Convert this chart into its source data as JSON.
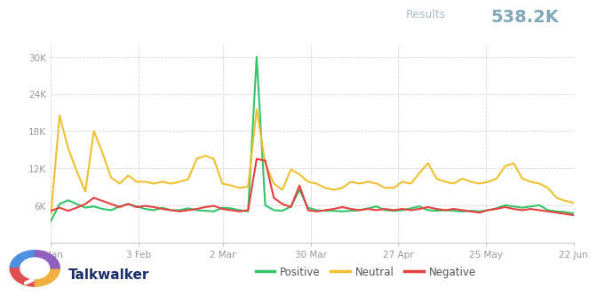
{
  "yticks": [
    0,
    6000,
    12000,
    18000,
    24000,
    30000
  ],
  "ytick_labels": [
    "",
    "6K",
    "12K",
    "18K",
    "24K",
    "30K"
  ],
  "xtick_labels": [
    "6 Jan",
    "3 Feb",
    "2 Mar",
    "30 Mar",
    "27 Apr",
    "25 May",
    "22 Jun"
  ],
  "days_from_start": [
    0,
    28,
    55,
    83,
    111,
    139,
    167
  ],
  "total_days": 167,
  "colors": {
    "positive": "#34c46a",
    "neutral": "#f0c030",
    "negative": "#e84040",
    "grid": "#cccccc",
    "spine": "#cccccc",
    "tick_label": "#999999"
  },
  "positive": [
    3500,
    6200,
    6800,
    6200,
    5600,
    5800,
    5400,
    5200,
    5800,
    6200,
    5800,
    5400,
    5200,
    5600,
    5200,
    5200,
    5500,
    5200,
    5100,
    5000,
    5600,
    5500,
    5200,
    5000,
    30000,
    6000,
    5200,
    5100,
    5800,
    8500,
    5600,
    5200,
    5100,
    5100,
    5000,
    5100,
    5200,
    5500,
    5800,
    5200,
    5100,
    5200,
    5500,
    5800,
    5200,
    5100,
    5200,
    5100,
    5000,
    5100,
    5000,
    5200,
    5500,
    6000,
    5800,
    5600,
    5800,
    6000,
    5200,
    5000,
    4900,
    4700
  ],
  "neutral": [
    4600,
    20500,
    15200,
    11500,
    8200,
    18000,
    14500,
    10500,
    9500,
    10800,
    9800,
    9800,
    9500,
    9800,
    9500,
    9800,
    10200,
    13500,
    14000,
    13500,
    9500,
    9200,
    8800,
    9000,
    21500,
    12800,
    9500,
    8500,
    11800,
    11000,
    9800,
    9500,
    8800,
    8500,
    8800,
    9800,
    9500,
    9800,
    9500,
    8800,
    8800,
    9800,
    9500,
    11200,
    12800,
    10300,
    9800,
    9500,
    10300,
    9800,
    9500,
    9800,
    10300,
    12300,
    12800,
    10300,
    9800,
    9500,
    8800,
    7200,
    6700,
    6400
  ],
  "negative": [
    5100,
    5600,
    5100,
    5600,
    6200,
    7200,
    6700,
    6200,
    5700,
    6200,
    5700,
    5900,
    5700,
    5400,
    5200,
    5000,
    5200,
    5400,
    5700,
    5900,
    5400,
    5200,
    5000,
    5200,
    13500,
    13200,
    7200,
    6200,
    5700,
    9200,
    5200,
    5000,
    5200,
    5400,
    5700,
    5400,
    5200,
    5400,
    5200,
    5400,
    5200,
    5400,
    5200,
    5400,
    5700,
    5400,
    5200,
    5400,
    5200,
    5000,
    4800,
    5200,
    5400,
    5700,
    5400,
    5200,
    5400,
    5200,
    5000,
    4800,
    4600,
    4400
  ],
  "n_points": 62,
  "results_label": "Results",
  "results_value": "538.2K",
  "results_label_color": "#aabec8",
  "results_value_color": "#7fa8b8",
  "legend_labels": [
    "Positive",
    "Neutral",
    "Negative"
  ],
  "legend_label_color": "#555555",
  "talkwalker_text": "Talkwalker",
  "talkwalker_color": "#1a2e6a"
}
